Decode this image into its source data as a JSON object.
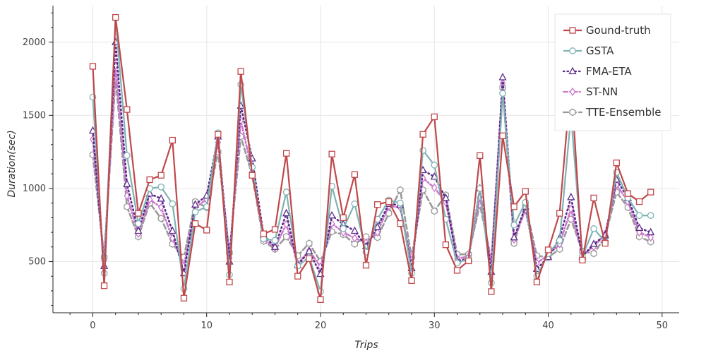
{
  "chart_data": {
    "type": "line",
    "title": "",
    "xlabel": "Trips",
    "ylabel": "Duration(sec)",
    "xlim": [
      -3.5,
      51.5
    ],
    "ylim": [
      150,
      2250
    ],
    "xticks": [
      0,
      10,
      20,
      30,
      40,
      50
    ],
    "yticks": [
      500,
      1000,
      1500,
      2000
    ],
    "grid": true,
    "legend_position": "top-right",
    "x": [
      0,
      1,
      2,
      3,
      4,
      5,
      6,
      7,
      8,
      9,
      10,
      11,
      12,
      13,
      14,
      15,
      16,
      17,
      18,
      19,
      20,
      21,
      22,
      23,
      24,
      25,
      26,
      27,
      28,
      29,
      30,
      31,
      32,
      33,
      34,
      35,
      36,
      37,
      38,
      39,
      40,
      41,
      42,
      43,
      44,
      45,
      46,
      47,
      48,
      49
    ],
    "series": [
      {
        "name": "Gound-truth",
        "color": "#c0474a",
        "marker": "square",
        "dash": "solid",
        "values": [
          1835,
          335,
          2170,
          1540,
          830,
          1060,
          1090,
          1330,
          250,
          760,
          715,
          1370,
          360,
          1800,
          1090,
          690,
          720,
          1240,
          400,
          520,
          240,
          1235,
          800,
          1095,
          475,
          890,
          910,
          760,
          370,
          1370,
          1490,
          615,
          440,
          505,
          1225,
          295,
          1360,
          875,
          980,
          360,
          580,
          830,
          1740,
          510,
          935,
          625,
          1175,
          965,
          910,
          975
        ]
      },
      {
        "name": "GSTA",
        "color": "#7fb3b4",
        "marker": "circle",
        "dash": "solid",
        "values": [
          1625,
          420,
          2165,
          1225,
          760,
          1000,
          1010,
          895,
          315,
          840,
          875,
          1380,
          410,
          1710,
          1145,
          655,
          645,
          975,
          470,
          530,
          295,
          1015,
          725,
          895,
          565,
          790,
          920,
          900,
          420,
          1260,
          1160,
          790,
          490,
          520,
          1000,
          355,
          1650,
          750,
          905,
          400,
          555,
          645,
          1500,
          535,
          725,
          635,
          1110,
          935,
          815,
          815
        ]
      },
      {
        "name": "FMA-ETA",
        "color": "#5a2a8a",
        "marker": "triangle",
        "dash": "dotted",
        "values": [
          1395,
          470,
          2000,
          1030,
          710,
          965,
          930,
          710,
          420,
          890,
          950,
          1355,
          500,
          1565,
          1205,
          680,
          600,
          830,
          475,
          570,
          415,
          815,
          755,
          710,
          605,
          735,
          895,
          885,
          455,
          1125,
          1080,
          935,
          505,
          520,
          1000,
          430,
          1760,
          665,
          875,
          450,
          530,
          660,
          940,
          535,
          620,
          680,
          1060,
          935,
          730,
          700
        ]
      },
      {
        "name": "ST-NN",
        "color": "#cc77cc",
        "marker": "diamond",
        "dash": "dashdot",
        "values": [
          1335,
          510,
          1840,
          950,
          690,
          925,
          870,
          660,
          470,
          870,
          925,
          1315,
          525,
          1465,
          1115,
          655,
          595,
          755,
          485,
          575,
          465,
          760,
          700,
          660,
          630,
          700,
          880,
          870,
          490,
          1070,
          1005,
          905,
          520,
          535,
          940,
          480,
          1720,
          650,
          855,
          490,
          545,
          620,
          860,
          545,
          600,
          690,
          1025,
          910,
          700,
          665
        ]
      },
      {
        "name": "TTE-Ensemble",
        "color": "#999999",
        "marker": "hexagon",
        "dash": "dashed",
        "values": [
          1230,
          530,
          1755,
          875,
          670,
          900,
          795,
          620,
          530,
          910,
          870,
          1250,
          560,
          1355,
          1090,
          640,
          585,
          670,
          540,
          625,
          500,
          705,
          685,
          620,
          670,
          665,
          830,
          990,
          530,
          990,
          845,
          955,
          550,
          550,
          890,
          510,
          1690,
          625,
          885,
          540,
          530,
          585,
          790,
          570,
          555,
          670,
          975,
          870,
          670,
          635
        ]
      }
    ]
  }
}
